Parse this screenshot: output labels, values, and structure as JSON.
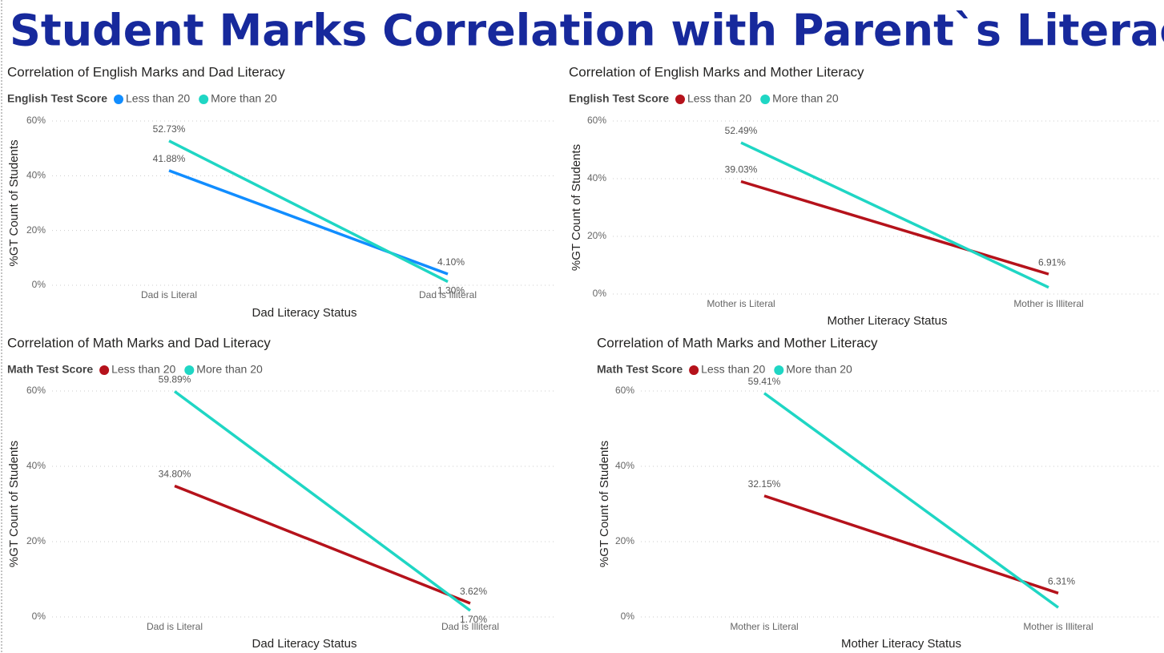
{
  "title": "Student Marks Correlation with Parent`s Literacy Status",
  "chart_data": [
    {
      "type": "line",
      "title": "Correlation of English Marks and Dad Literacy",
      "legend_title": "English Test Score",
      "xlabel": "Dad Literacy Status",
      "ylabel": "%GT Count of Students",
      "categories": [
        "Dad is Literal",
        "Dad is Illiteral"
      ],
      "series": [
        {
          "name": "Less than 20",
          "color": "#118dff",
          "values": [
            41.88,
            4.1
          ],
          "value_labels": [
            "41.88%",
            "4.10%"
          ]
        },
        {
          "name": "More than 20",
          "color": "#1fd6c4",
          "values": [
            52.73,
            1.3
          ],
          "value_labels": [
            "52.73%",
            "1.30%"
          ]
        }
      ],
      "ylim": [
        0,
        60
      ],
      "yticks": [
        {
          "value": 0,
          "label": "0%"
        },
        {
          "value": 20,
          "label": "20%"
        },
        {
          "value": 40,
          "label": "40%"
        },
        {
          "value": 60,
          "label": "60%"
        }
      ],
      "grid": true
    },
    {
      "type": "line",
      "title": "Correlation of English Marks and Mother Literacy",
      "legend_title": "English Test Score",
      "xlabel": "Mother Literacy Status",
      "ylabel": "%GT Count of Students",
      "categories": [
        "Mother is Literal",
        "Mother is Illiteral"
      ],
      "series": [
        {
          "name": "Less than 20",
          "color": "#b5121b",
          "values": [
            39.03,
            6.91
          ],
          "value_labels": [
            "39.03%",
            "6.91%"
          ]
        },
        {
          "name": "More than 20",
          "color": "#1fd6c4",
          "values": [
            52.49,
            2.3
          ],
          "value_labels": [
            "52.49%",
            null
          ]
        }
      ],
      "ylim": [
        0,
        60
      ],
      "yticks": [
        {
          "value": 0,
          "label": "0%"
        },
        {
          "value": 20,
          "label": "20%"
        },
        {
          "value": 40,
          "label": "40%"
        },
        {
          "value": 60,
          "label": "60%"
        }
      ],
      "grid": true
    },
    {
      "type": "line",
      "title": "Correlation of Math Marks and Dad Literacy",
      "legend_title": "Math Test Score",
      "xlabel": "Dad Literacy Status",
      "ylabel": "%GT Count of Students",
      "categories": [
        "Dad is Literal",
        "Dad is Illiteral"
      ],
      "series": [
        {
          "name": "Less than 20",
          "color": "#b5121b",
          "values": [
            34.8,
            3.62
          ],
          "value_labels": [
            "34.80%",
            "3.62%"
          ]
        },
        {
          "name": "More than 20",
          "color": "#1fd6c4",
          "values": [
            59.89,
            1.7
          ],
          "value_labels": [
            "59.89%",
            "1.70%"
          ]
        }
      ],
      "ylim": [
        0,
        60
      ],
      "yticks": [
        {
          "value": 0,
          "label": "0%"
        },
        {
          "value": 20,
          "label": "20%"
        },
        {
          "value": 40,
          "label": "40%"
        },
        {
          "value": 60,
          "label": "60%"
        }
      ],
      "grid": true
    },
    {
      "type": "line",
      "title": "Correlation of Math Marks and Mother Literacy",
      "legend_title": "Math Test Score",
      "xlabel": "Mother Literacy Status",
      "ylabel": "%GT Count of Students",
      "categories": [
        "Mother is Literal",
        "Mother is Illiteral"
      ],
      "series": [
        {
          "name": "Less than 20",
          "color": "#b5121b",
          "values": [
            32.15,
            6.31
          ],
          "value_labels": [
            "32.15%",
            "6.31%"
          ]
        },
        {
          "name": "More than 20",
          "color": "#1fd6c4",
          "values": [
            59.41,
            2.5
          ],
          "value_labels": [
            "59.41%",
            null
          ]
        }
      ],
      "ylim": [
        0,
        60
      ],
      "yticks": [
        {
          "value": 0,
          "label": "0%"
        },
        {
          "value": 20,
          "label": "20%"
        },
        {
          "value": 40,
          "label": "40%"
        },
        {
          "value": 60,
          "label": "60%"
        }
      ],
      "grid": true
    }
  ]
}
